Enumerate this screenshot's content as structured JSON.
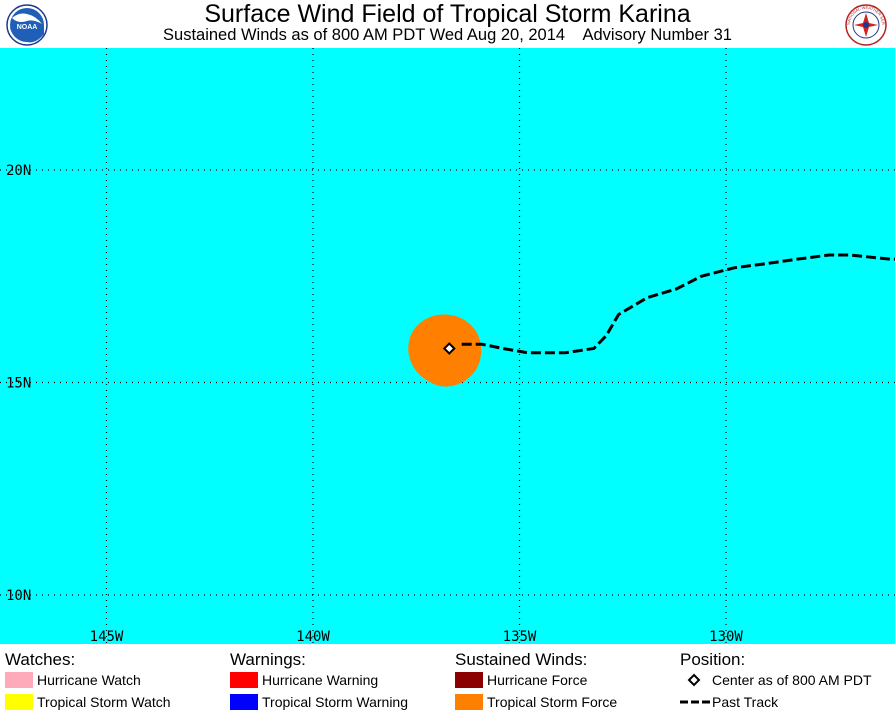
{
  "header": {
    "title": "Surface Wind Field of Tropical Storm Karina",
    "subtitle": "Sustained Winds as of 800 AM PDT Wed Aug 20, 2014    Advisory Number 31",
    "left_logo": {
      "icon": "noaa-logo-icon",
      "text": "NOAA"
    },
    "right_logo": {
      "icon": "nws-logo-icon",
      "text": "NATIONAL WEATHER SERVICE"
    }
  },
  "map": {
    "background_color": "#00ffff",
    "lat_labels": [
      "20N",
      "15N",
      "10N"
    ],
    "lon_labels": [
      "145W",
      "140W",
      "135W",
      "130W"
    ],
    "grid": "dotted",
    "storm_center": {
      "lat": 15.8,
      "lon": -136.7
    },
    "tropical_storm_force_color": "#ff7f00",
    "past_track_points": [
      {
        "lat": 15.9,
        "lon": -136.4
      },
      {
        "lat": 15.9,
        "lon": -135.9
      },
      {
        "lat": 15.8,
        "lon": -135.4
      },
      {
        "lat": 15.7,
        "lon": -134.8
      },
      {
        "lat": 15.7,
        "lon": -133.9
      },
      {
        "lat": 15.8,
        "lon": -133.2
      },
      {
        "lat": 16.1,
        "lon": -132.9
      },
      {
        "lat": 16.6,
        "lon": -132.6
      },
      {
        "lat": 17.0,
        "lon": -131.9
      },
      {
        "lat": 17.2,
        "lon": -131.2
      },
      {
        "lat": 17.5,
        "lon": -130.6
      },
      {
        "lat": 17.7,
        "lon": -129.8
      },
      {
        "lat": 17.8,
        "lon": -129.0
      },
      {
        "lat": 17.9,
        "lon": -128.3
      },
      {
        "lat": 18.0,
        "lon": -127.5
      },
      {
        "lat": 18.0,
        "lon": -127.0
      },
      {
        "lat": 17.9,
        "lon": -126.0
      },
      {
        "lat": 17.9,
        "lon": -124.6
      }
    ]
  },
  "legend": {
    "watches": {
      "heading": "Watches:",
      "items": [
        {
          "label": "Hurricane Watch",
          "color": "#ffaabb"
        },
        {
          "label": "Tropical Storm Watch",
          "color": "#ffff00"
        }
      ]
    },
    "warnings": {
      "heading": "Warnings:",
      "items": [
        {
          "label": "Hurricane Warning",
          "color": "#ff0000"
        },
        {
          "label": "Tropical Storm Warning",
          "color": "#0000ff"
        }
      ]
    },
    "winds": {
      "heading": "Sustained Winds:",
      "items": [
        {
          "label": "Hurricane Force",
          "color": "#8b0000"
        },
        {
          "label": "Tropical Storm Force",
          "color": "#ff7f00"
        }
      ]
    },
    "position": {
      "heading": "Position:",
      "center_label": "Center as of 800 AM PDT",
      "track_label": "Past Track",
      "center_icon": "diamond-icon",
      "track_icon": "dashed-line-icon"
    }
  }
}
